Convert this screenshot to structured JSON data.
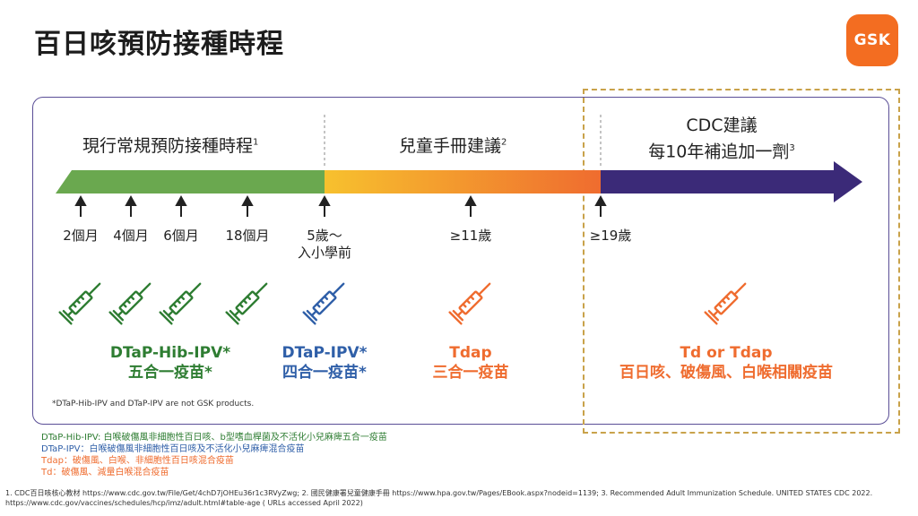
{
  "title": "百日咳預防接種時程",
  "logo_text": "GSK",
  "phases": {
    "routine": {
      "label": "現行常規預防接種時程",
      "ref": "1"
    },
    "handbook": {
      "label": "兒童手冊建議",
      "ref": "2"
    },
    "cdc": {
      "line1": "CDC建議",
      "line2": "每10年補追加一劑",
      "ref": "3"
    }
  },
  "ages": {
    "a1": "2個月",
    "a2": "4個月",
    "a3": "6個月",
    "a4": "18個月",
    "a5_line1": "5歲～",
    "a5_line2": "入小學前",
    "a6": "≥11歲",
    "a7": "≥19歲"
  },
  "vaccines": {
    "pentavalent": {
      "line1": "DTaP-Hib-IPV*",
      "line2": "五合一疫苗*",
      "color": "#2e7d32"
    },
    "tetravalent": {
      "line1": "DTaP-IPV*",
      "line2": "四合一疫苗*",
      "color": "#2f5fa8"
    },
    "tdap": {
      "line1": "Tdap",
      "line2": "三合一疫苗",
      "color": "#ef6c2f"
    },
    "adult": {
      "line1": "Td or Tdap",
      "line2": "百日咳、破傷風、白喉相關疫苗",
      "color": "#ef6c2f"
    }
  },
  "disclaimer": "*DTaP-Hib-IPV and DTaP-IPV are not GSK products.",
  "legend": {
    "l1": "DTaP-Hib-IPV: 白喉破傷風非細胞性百日咳、b型嗜血桿菌及不活化小兒麻痺五合一疫苗",
    "l2": "DTaP-IPV：白喉破傷風非細胞性百日咳及不活化小兒麻痺混合疫苗",
    "l3": "Tdap：破傷風、白喉、非細胞性百日咳混合疫苗",
    "l4": "Td：破傷風、減量白喉混合疫苗"
  },
  "references": {
    "line1": "1. CDC百日咳核心教材 https://www.cdc.gov.tw/File/Get/4chD7jOHEu36r1c3RVyZwg; 2. 國民健康署兒童健康手冊 https://www.hpa.gov.tw/Pages/EBook.aspx?nodeid=1139; 3. Recommended Adult Immunization Schedule. UNITED STATES CDC 2022.",
    "line2": "https://www.cdc.gov/vaccines/schedules/hcp/imz/adult.html#table-age ( URLs accessed April 2022)"
  },
  "colors": {
    "green": "#2e7d32",
    "blue": "#2f5fa8",
    "orange": "#ef6c2f",
    "purple": "#3b2a78",
    "gold": "#c9a24a",
    "gsk_orange": "#f36d21"
  },
  "icons": {
    "up_arrow": "up-arrow-icon",
    "syringe": "syringe-icon"
  }
}
